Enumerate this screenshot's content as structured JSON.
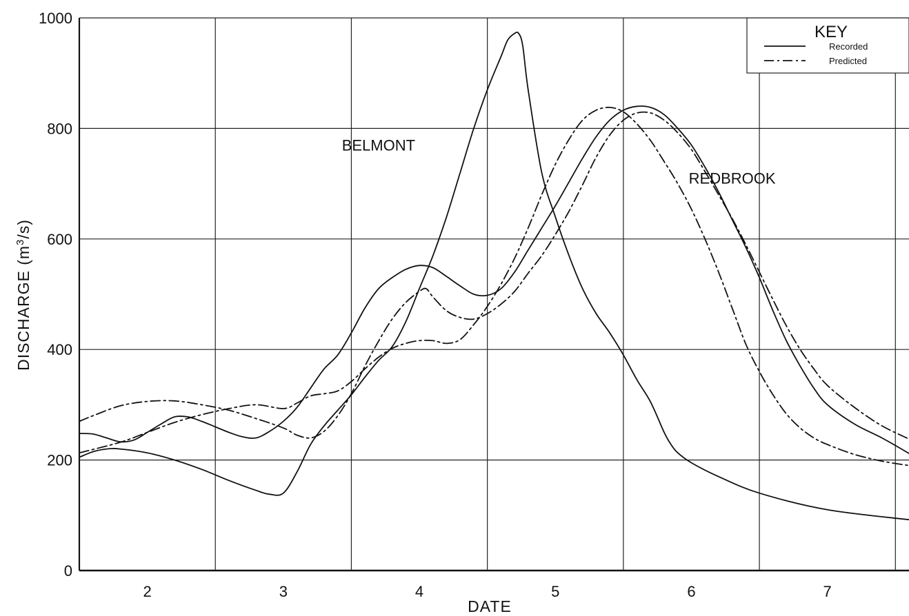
{
  "chart_data": {
    "type": "line",
    "title": "",
    "xlabel": "DATE",
    "ylabel": "DISCHARGE (m3/s)",
    "ylabel_parts": {
      "before": "DISCHARGE (m",
      "sup": "3",
      "after": "/s)"
    },
    "xlim": [
      1.5,
      7.6
    ],
    "ylim": [
      0,
      1000
    ],
    "x_ticks": [
      2,
      3,
      4,
      5,
      6,
      7
    ],
    "y_ticks": [
      0,
      200,
      400,
      600,
      800,
      1000
    ],
    "grid": true,
    "legend": {
      "title": "KEY",
      "position": "top-right",
      "entries": [
        {
          "label": "Recorded",
          "style": "solid"
        },
        {
          "label": "Predicted",
          "style": "dashdot"
        }
      ]
    },
    "annotations": [
      {
        "text": "BELMONT",
        "x": 3.7,
        "y": 760
      },
      {
        "text": "REDBROOK",
        "x": 6.3,
        "y": 700
      }
    ],
    "series": [
      {
        "style": "solid",
        "x": [
          1.5,
          1.6,
          1.7,
          1.8,
          2.0,
          2.2,
          2.4,
          2.6,
          2.8,
          2.9,
          3.0,
          3.1,
          3.2,
          3.3,
          3.4,
          3.5,
          3.6,
          3.7,
          3.8,
          3.9,
          4.0,
          4.1,
          4.2,
          4.3,
          4.4,
          4.5,
          4.6,
          4.65,
          4.7,
          4.73,
          4.76,
          4.8,
          4.9,
          5.0,
          5.1,
          5.2,
          5.3,
          5.4,
          5.5,
          5.6,
          5.7,
          5.8,
          5.85,
          5.9,
          6.0,
          6.2,
          6.5,
          7.0,
          7.6
        ],
        "y": [
          205,
          215,
          220,
          220,
          213,
          200,
          183,
          163,
          145,
          138,
          140,
          178,
          228,
          262,
          290,
          318,
          350,
          380,
          405,
          450,
          510,
          570,
          640,
          720,
          800,
          870,
          930,
          960,
          972,
          972,
          950,
          870,
          720,
          640,
          570,
          510,
          465,
          430,
          390,
          345,
          305,
          250,
          228,
          213,
          195,
          170,
          140,
          110,
          92
        ]
      },
      {
        "style": "dashdot",
        "x": [
          1.5,
          1.8,
          2.0,
          2.2,
          2.4,
          2.6,
          2.8,
          3.0,
          3.1,
          3.2,
          3.3,
          3.4,
          3.5,
          3.6,
          3.7,
          3.8,
          3.9,
          4.0,
          4.1,
          4.2,
          4.3,
          4.4,
          4.5,
          4.6,
          4.7,
          4.8,
          4.9,
          5.0,
          5.1,
          5.2,
          5.3,
          5.4,
          5.5,
          5.6,
          5.7,
          5.8,
          5.9,
          6.0,
          6.1,
          6.2,
          6.3,
          6.4,
          6.5,
          6.6,
          6.7,
          6.8,
          6.9,
          7.0,
          7.2,
          7.4,
          7.6
        ],
        "y": [
          213,
          232,
          250,
          268,
          282,
          293,
          300,
          293,
          303,
          316,
          320,
          325,
          342,
          365,
          386,
          402,
          411,
          416,
          416,
          411,
          418,
          445,
          478,
          518,
          565,
          620,
          680,
          735,
          780,
          815,
          833,
          838,
          830,
          808,
          778,
          740,
          700,
          654,
          600,
          540,
          475,
          410,
          360,
          318,
          283,
          258,
          240,
          228,
          210,
          198,
          190
        ]
      },
      {
        "style": "solid",
        "x": [
          1.5,
          1.6,
          1.7,
          1.8,
          1.9,
          2.0,
          2.1,
          2.2,
          2.3,
          2.4,
          2.5,
          2.6,
          2.7,
          2.8,
          2.9,
          3.0,
          3.1,
          3.2,
          3.3,
          3.4,
          3.5,
          3.6,
          3.7,
          3.8,
          3.9,
          4.0,
          4.1,
          4.2,
          4.3,
          4.4,
          4.5,
          4.6,
          4.7,
          4.8,
          4.9,
          5.0,
          5.1,
          5.2,
          5.3,
          5.4,
          5.5,
          5.6,
          5.7,
          5.8,
          5.9,
          6.0,
          6.1,
          6.2,
          6.3,
          6.4,
          6.5,
          6.6,
          6.7,
          6.8,
          6.9,
          7.0,
          7.2,
          7.4,
          7.6
        ],
        "y": [
          248,
          247,
          240,
          233,
          236,
          250,
          265,
          278,
          278,
          270,
          260,
          250,
          242,
          240,
          252,
          270,
          295,
          330,
          365,
          390,
          430,
          475,
          510,
          530,
          545,
          552,
          548,
          532,
          515,
          500,
          498,
          510,
          540,
          580,
          620,
          660,
          703,
          746,
          785,
          815,
          833,
          840,
          838,
          825,
          800,
          770,
          730,
          685,
          635,
          585,
          530,
          470,
          415,
          370,
          330,
          300,
          265,
          240,
          212
        ]
      },
      {
        "style": "dashdot",
        "x": [
          1.5,
          1.6,
          1.8,
          2.0,
          2.2,
          2.4,
          2.6,
          2.8,
          3.0,
          3.1,
          3.2,
          3.3,
          3.4,
          3.5,
          3.6,
          3.7,
          3.8,
          3.9,
          4.0,
          4.05,
          4.1,
          4.2,
          4.3,
          4.4,
          4.5,
          4.6,
          4.7,
          4.8,
          4.9,
          5.0,
          5.1,
          5.2,
          5.3,
          5.4,
          5.5,
          5.6,
          5.7,
          5.8,
          5.9,
          6.0,
          6.1,
          6.2,
          6.3,
          6.4,
          6.5,
          6.6,
          6.7,
          6.8,
          6.9,
          7.0,
          7.2,
          7.4,
          7.6
        ],
        "y": [
          270,
          280,
          298,
          306,
          307,
          300,
          290,
          275,
          258,
          245,
          240,
          252,
          280,
          320,
          370,
          415,
          455,
          485,
          505,
          510,
          495,
          470,
          458,
          455,
          465,
          482,
          505,
          538,
          570,
          608,
          650,
          698,
          748,
          788,
          815,
          828,
          828,
          815,
          792,
          762,
          722,
          680,
          637,
          590,
          540,
          490,
          442,
          400,
          365,
          335,
          295,
          262,
          238
        ]
      }
    ]
  }
}
